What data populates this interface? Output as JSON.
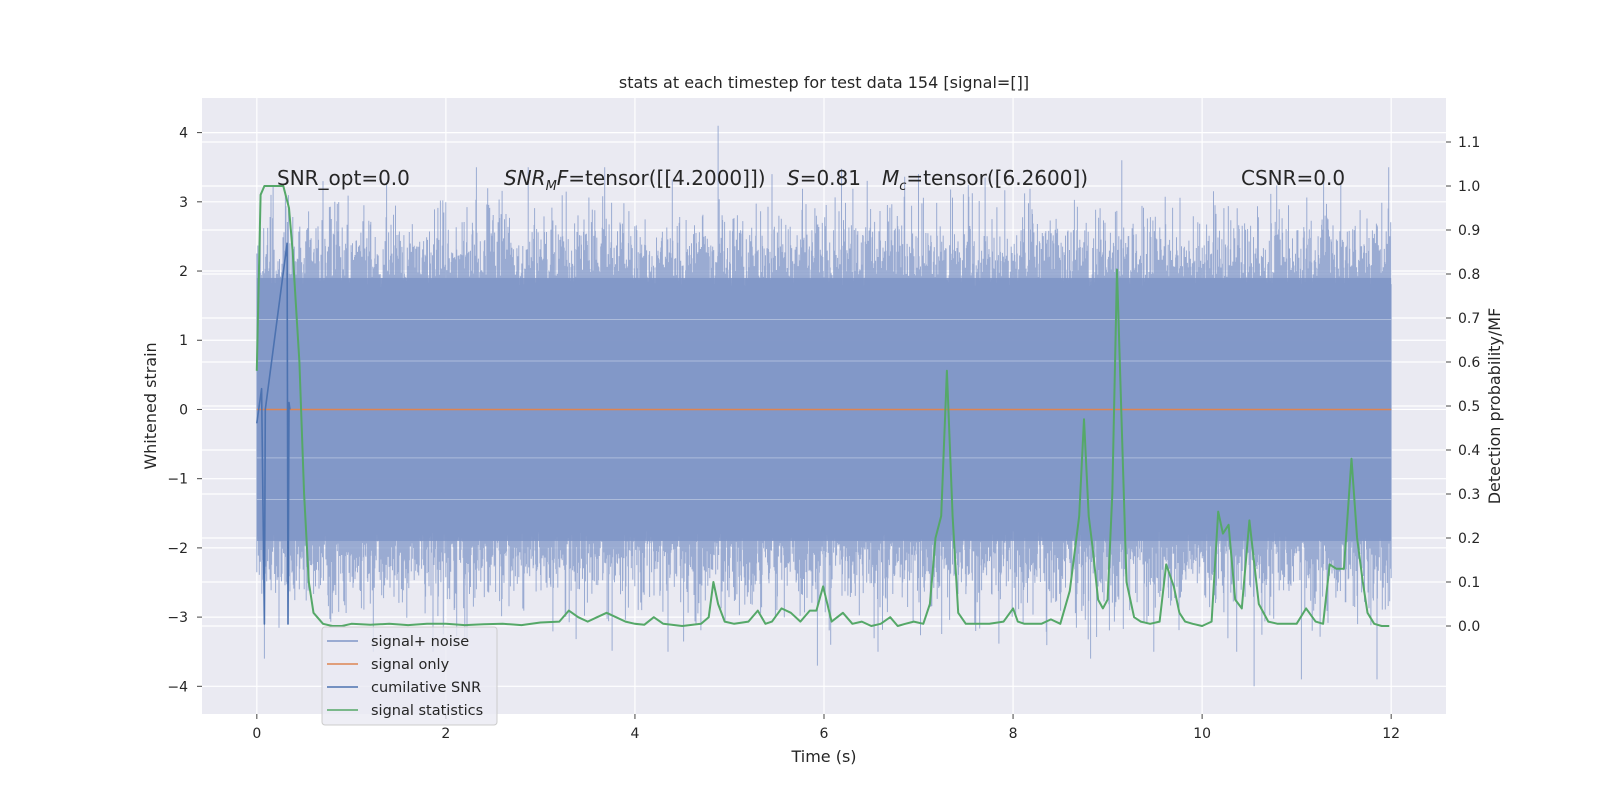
{
  "chart_data": {
    "type": "line",
    "title": "stats at each timestep for test data 154 [signal=[]]",
    "xlabel": "Time (s)",
    "ylabel_left": "Whitened strain",
    "ylabel_right": "Detection probability/MF",
    "xlim": [
      -0.58,
      12.58
    ],
    "ylim_left": [
      -4.4,
      4.5
    ],
    "ylim_right": [
      -0.2,
      1.2
    ],
    "xticks": [
      0,
      2,
      4,
      6,
      8,
      10,
      12
    ],
    "yticks_left": [
      -4,
      -3,
      -2,
      -1,
      0,
      1,
      2,
      3,
      4
    ],
    "yticks_right": [
      0.0,
      0.1,
      0.2,
      0.3,
      0.4,
      0.5,
      0.6,
      0.7,
      0.8,
      0.9,
      1.0,
      1.1
    ],
    "grid": true,
    "legend_position": "lower-left",
    "annotations": [
      "SNR_opt=0.0",
      "SNR_MF=tensor([[4.2000]])",
      "S=0.81",
      "M_c=tensor([6.2600])",
      "CSNR=0.0"
    ],
    "series": [
      {
        "name": "signal+ noise",
        "axis": "left",
        "color": "#7f96c7",
        "description": "whitened strain noise trace, time 0 to 12 s",
        "envelope_core": [
          -1.9,
          1.9
        ],
        "extremes": [
          {
            "x": 0.08,
            "y": -3.6
          },
          {
            "x": 0.15,
            "y": 3.1
          },
          {
            "x": 0.7,
            "y": 3.3
          },
          {
            "x": 2.2,
            "y": -3.3
          },
          {
            "x": 4.35,
            "y": -3.5
          },
          {
            "x": 4.88,
            "y": 4.1
          },
          {
            "x": 5.45,
            "y": 3.4
          },
          {
            "x": 5.93,
            "y": -3.7
          },
          {
            "x": 7.0,
            "y": 3.4
          },
          {
            "x": 8.82,
            "y": -3.6
          },
          {
            "x": 9.15,
            "y": 3.6
          },
          {
            "x": 10.55,
            "y": -4.0
          },
          {
            "x": 11.05,
            "y": -3.9
          },
          {
            "x": 11.85,
            "y": -3.9
          }
        ]
      },
      {
        "name": "signal only",
        "axis": "left",
        "color": "#dd8452",
        "x": [
          0,
          12
        ],
        "values": [
          0,
          0
        ]
      },
      {
        "name": "cumilative SNR",
        "axis": "left",
        "color": "#4c72b0",
        "x": [
          0.0,
          0.05,
          0.08,
          0.09,
          0.32,
          0.33,
          0.34,
          0.35
        ],
        "values": [
          -0.2,
          0.3,
          -3.1,
          0.0,
          2.4,
          -3.1,
          0.1,
          0.0
        ]
      },
      {
        "name": "signal statistics",
        "axis": "right",
        "color": "#55a868",
        "x": [
          0.0,
          0.04,
          0.08,
          0.12,
          0.2,
          0.28,
          0.34,
          0.38,
          0.45,
          0.5,
          0.55,
          0.6,
          0.7,
          0.8,
          0.9,
          1.0,
          1.2,
          1.4,
          1.6,
          1.8,
          2.0,
          2.2,
          2.4,
          2.6,
          2.8,
          3.0,
          3.2,
          3.3,
          3.4,
          3.5,
          3.6,
          3.7,
          3.8,
          3.9,
          4.0,
          4.1,
          4.2,
          4.3,
          4.5,
          4.7,
          4.78,
          4.83,
          4.88,
          4.95,
          5.05,
          5.2,
          5.3,
          5.38,
          5.45,
          5.55,
          5.65,
          5.75,
          5.85,
          5.92,
          5.99,
          6.08,
          6.2,
          6.3,
          6.4,
          6.5,
          6.6,
          6.7,
          6.78,
          6.86,
          6.95,
          7.05,
          7.12,
          7.18,
          7.24,
          7.3,
          7.36,
          7.42,
          7.5,
          7.6,
          7.75,
          7.9,
          8.0,
          8.05,
          8.12,
          8.2,
          8.3,
          8.4,
          8.5,
          8.6,
          8.7,
          8.75,
          8.8,
          8.84,
          8.9,
          8.95,
          9.0,
          9.05,
          9.1,
          9.15,
          9.2,
          9.28,
          9.35,
          9.45,
          9.55,
          9.62,
          9.7,
          9.76,
          9.82,
          9.9,
          10.0,
          10.1,
          10.17,
          10.22,
          10.28,
          10.35,
          10.42,
          10.5,
          10.6,
          10.7,
          10.8,
          10.9,
          11.0,
          11.1,
          11.2,
          11.28,
          11.35,
          11.42,
          11.5,
          11.58,
          11.64,
          11.7,
          11.75,
          11.82,
          11.9,
          11.98
        ],
        "values": [
          0.58,
          0.98,
          1.0,
          1.0,
          1.0,
          1.0,
          0.95,
          0.85,
          0.6,
          0.3,
          0.1,
          0.03,
          0.005,
          0.0,
          0.0,
          0.005,
          0.003,
          0.005,
          0.002,
          0.005,
          0.005,
          0.002,
          0.004,
          0.005,
          0.002,
          0.008,
          0.01,
          0.035,
          0.02,
          0.01,
          0.02,
          0.03,
          0.02,
          0.01,
          0.005,
          0.003,
          0.02,
          0.005,
          0.0,
          0.005,
          0.02,
          0.1,
          0.05,
          0.01,
          0.005,
          0.01,
          0.035,
          0.005,
          0.01,
          0.04,
          0.03,
          0.01,
          0.035,
          0.035,
          0.09,
          0.01,
          0.03,
          0.005,
          0.01,
          0.0,
          0.005,
          0.02,
          0.0,
          0.005,
          0.01,
          0.005,
          0.05,
          0.2,
          0.25,
          0.58,
          0.25,
          0.03,
          0.005,
          0.005,
          0.005,
          0.01,
          0.04,
          0.01,
          0.005,
          0.005,
          0.005,
          0.015,
          0.005,
          0.08,
          0.25,
          0.47,
          0.25,
          0.18,
          0.06,
          0.04,
          0.06,
          0.3,
          0.81,
          0.45,
          0.1,
          0.02,
          0.01,
          0.005,
          0.01,
          0.14,
          0.09,
          0.03,
          0.01,
          0.005,
          0.0,
          0.01,
          0.26,
          0.21,
          0.23,
          0.06,
          0.04,
          0.24,
          0.05,
          0.01,
          0.005,
          0.005,
          0.005,
          0.04,
          0.01,
          0.005,
          0.14,
          0.13,
          0.13,
          0.38,
          0.2,
          0.1,
          0.03,
          0.005,
          0.0,
          0.0
        ]
      }
    ]
  }
}
